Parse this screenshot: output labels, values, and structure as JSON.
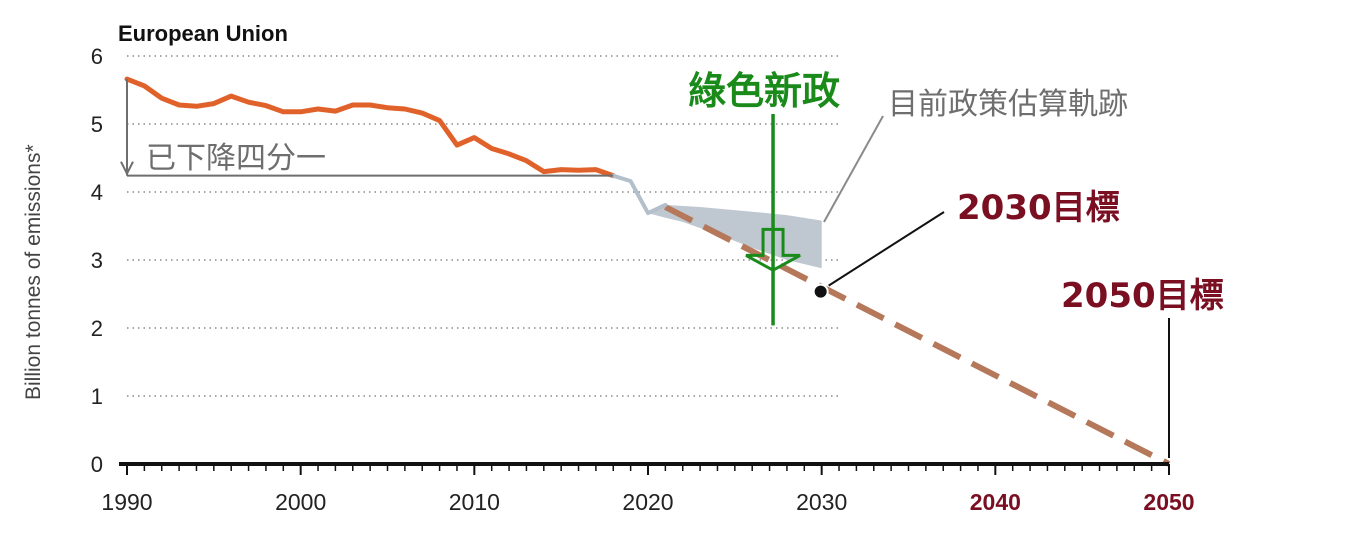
{
  "chart_data": {
    "type": "line",
    "title": "European Union",
    "ylabel": "Billion tonnes of emissions*",
    "xlabel": "",
    "xlim": [
      1990,
      2050
    ],
    "ylim": [
      0,
      6
    ],
    "x_ticks": [
      "1990",
      "2000",
      "2010",
      "2020",
      "2030",
      "2040",
      "2050"
    ],
    "y_ticks": [
      "0",
      "1",
      "2",
      "3",
      "4",
      "5",
      "6"
    ],
    "grid": "horizontal dotted",
    "series": [
      {
        "role": "historical",
        "color": "#e0622a",
        "points": [
          [
            1990,
            5.66
          ],
          [
            1991,
            5.56
          ],
          [
            1992,
            5.38
          ],
          [
            1993,
            5.28
          ],
          [
            1994,
            5.26
          ],
          [
            1995,
            5.3
          ],
          [
            1996,
            5.41
          ],
          [
            1997,
            5.32
          ],
          [
            1998,
            5.27
          ],
          [
            1999,
            5.18
          ],
          [
            2000,
            5.18
          ],
          [
            2001,
            5.22
          ],
          [
            2002,
            5.19
          ],
          [
            2003,
            5.28
          ],
          [
            2004,
            5.28
          ],
          [
            2005,
            5.24
          ],
          [
            2006,
            5.22
          ],
          [
            2007,
            5.16
          ],
          [
            2008,
            5.05
          ],
          [
            2009,
            4.69
          ],
          [
            2010,
            4.8
          ],
          [
            2011,
            4.64
          ],
          [
            2012,
            4.56
          ],
          [
            2013,
            4.46
          ],
          [
            2014,
            4.3
          ],
          [
            2015,
            4.33
          ],
          [
            2016,
            4.32
          ],
          [
            2017,
            4.33
          ],
          [
            2018,
            4.24
          ]
        ]
      },
      {
        "role": "recent",
        "color": "#b3bfcb",
        "points": [
          [
            2018,
            4.24
          ],
          [
            2019,
            4.16
          ],
          [
            2020,
            3.69
          ],
          [
            2021,
            3.81
          ]
        ]
      }
    ],
    "projection_band": {
      "color": "#bfc8d1",
      "upper": [
        [
          2020,
          3.69
        ],
        [
          2021,
          3.81
        ],
        [
          2023,
          3.78
        ],
        [
          2026,
          3.71
        ],
        [
          2028,
          3.66
        ],
        [
          2030,
          3.58
        ]
      ],
      "lower": [
        [
          2030,
          2.88
        ],
        [
          2028,
          3.0
        ],
        [
          2026,
          3.18
        ],
        [
          2024,
          3.38
        ],
        [
          2022,
          3.56
        ],
        [
          2021,
          3.62
        ],
        [
          2020,
          3.69
        ]
      ]
    },
    "target_line": {
      "color": "#b5785a",
      "points": [
        [
          2021,
          3.78
        ],
        [
          2050,
          0.0
        ]
      ]
    },
    "target_2030": {
      "x": 2030,
      "y": 2.55
    },
    "reduction_bracket": {
      "x": 1990,
      "from": 5.66,
      "to": 4.24
    },
    "green_deal_arrow": {
      "x": 2027.2,
      "from": 5.2,
      "to": 2.85,
      "color": "#1a8a1a"
    }
  },
  "annotations": {
    "reduction": "已下降四分一",
    "green_deal": "綠色新政",
    "policy_projection": "目前政策估算軌跡",
    "target_2030": "2030目標",
    "target_2050": "2050目標"
  },
  "colors": {
    "historical": "#e0622a",
    "grey_text": "#6e6e6e",
    "green": "#1a8a1a",
    "target_text": "#7a0f22",
    "axis": "#111111",
    "grid": "#8a8a8a"
  }
}
